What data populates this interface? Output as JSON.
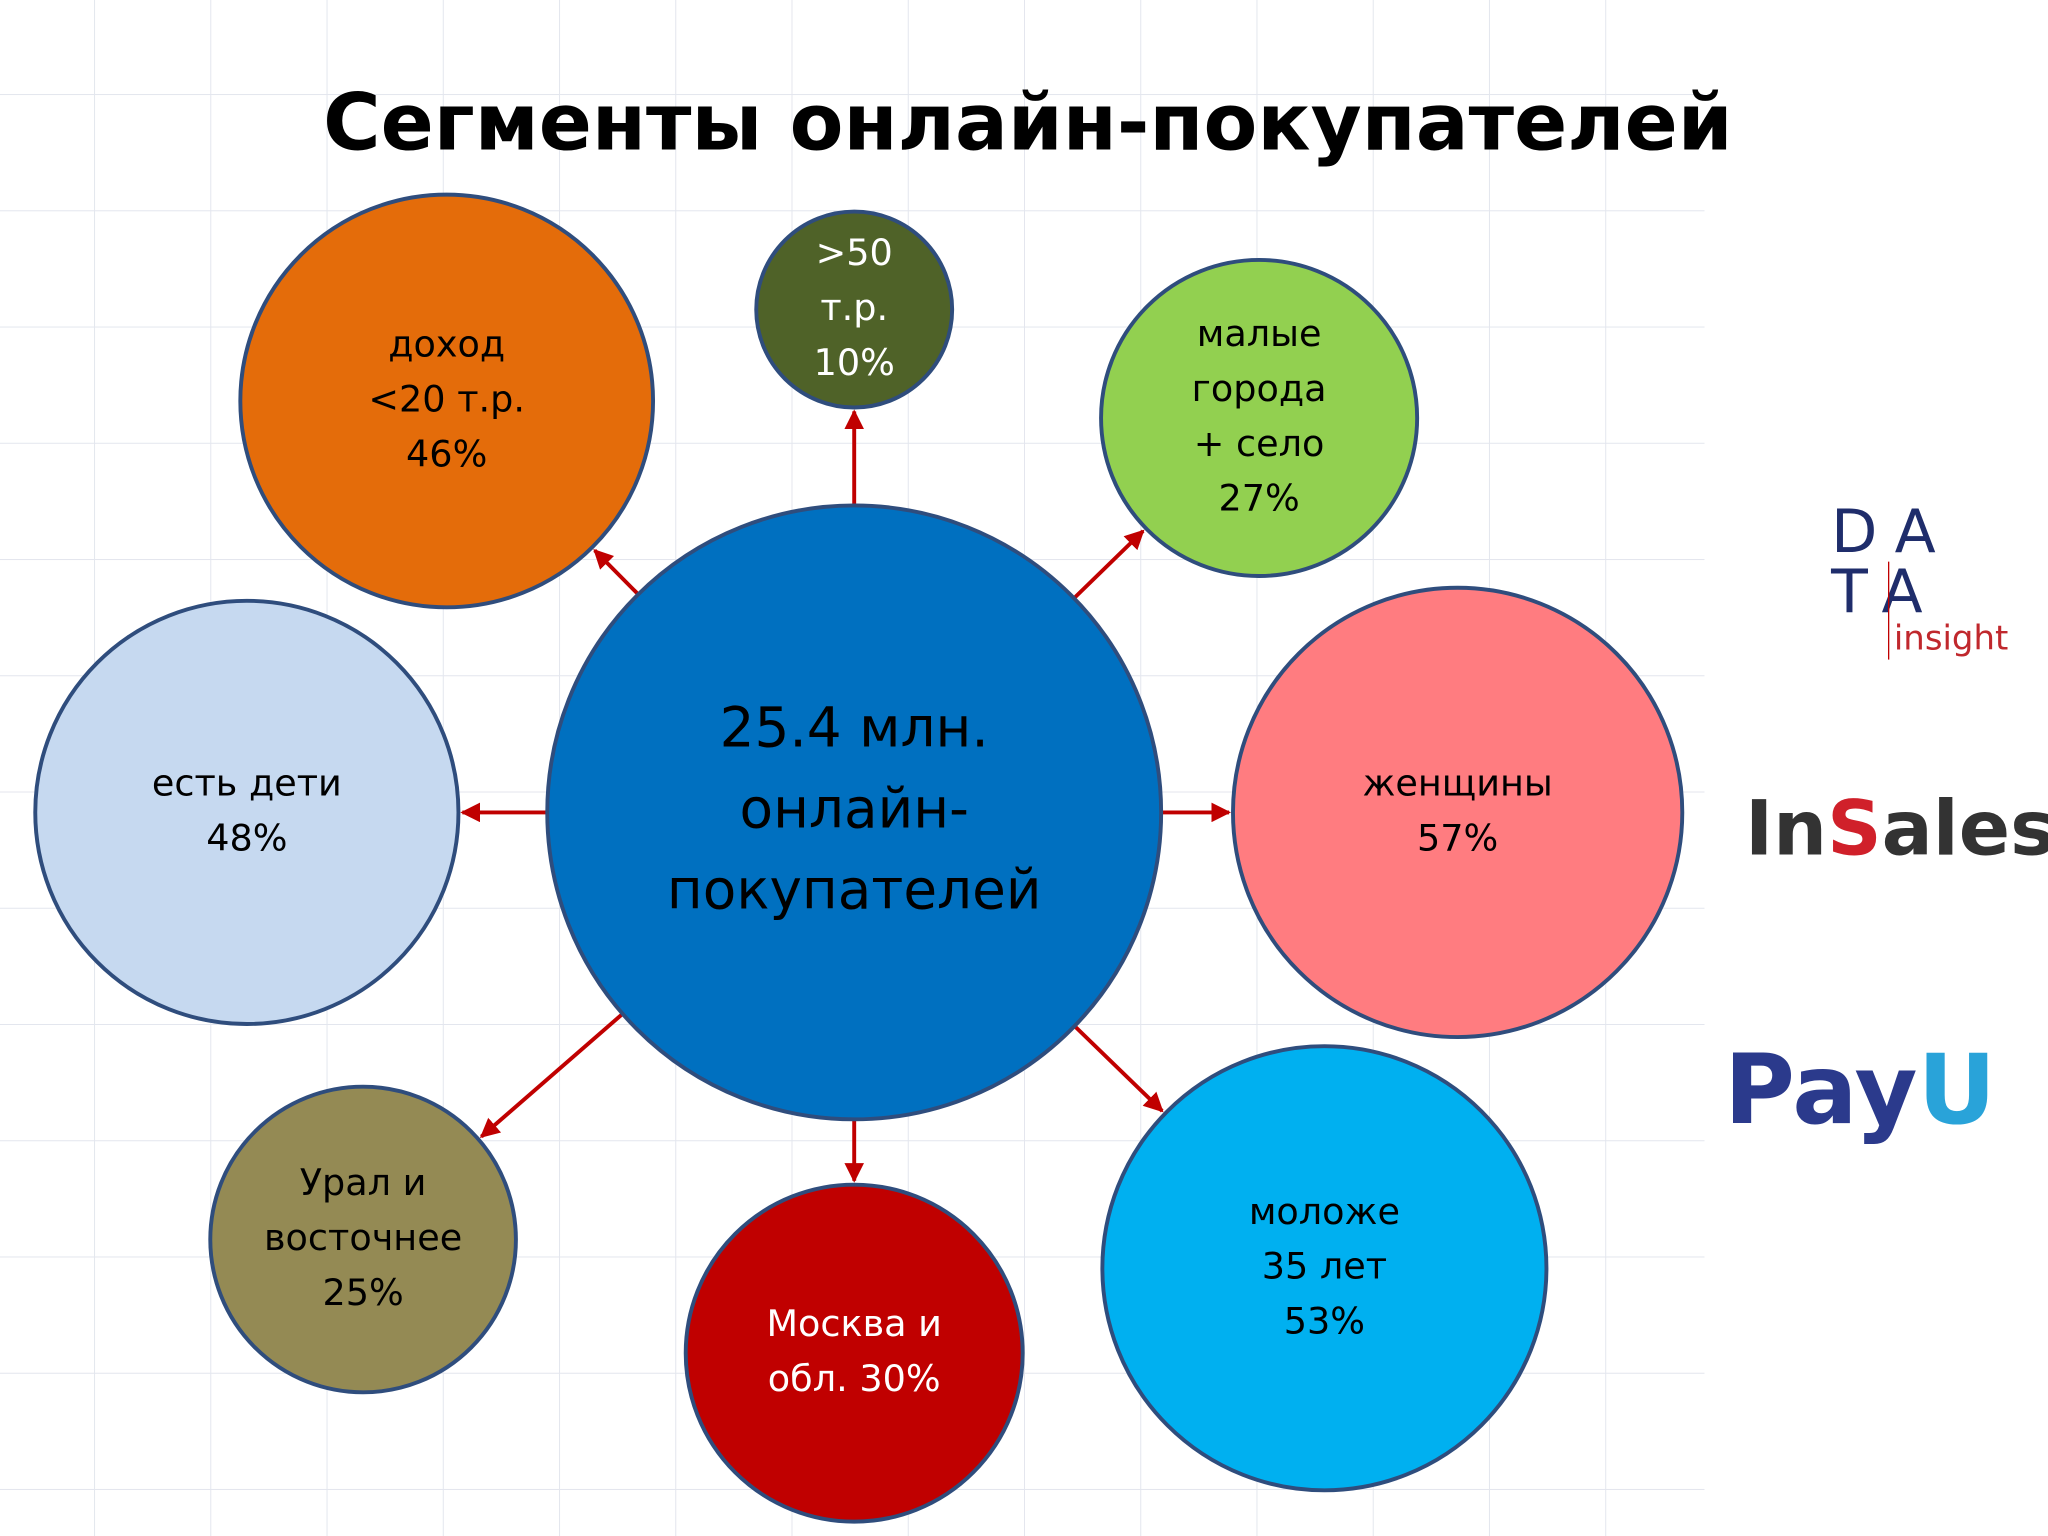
{
  "header": {
    "title": "Сегменты онлайн-покупателей"
  },
  "center": {
    "lines": [
      "25.4 млн.",
      "онлайн-",
      "покупателей"
    ]
  },
  "nodes": [
    {
      "lines": [
        "доход",
        "<20 т.р.",
        "46%"
      ]
    },
    {
      "lines": [
        ">50",
        "т.р.",
        "10%"
      ]
    },
    {
      "lines": [
        "малые",
        "города",
        "+ село",
        "27%"
      ]
    },
    {
      "lines": [
        "женщины",
        "57%"
      ]
    },
    {
      "lines": [
        "моложе",
        "35 лет",
        "53%"
      ]
    },
    {
      "lines": [
        "Москва и",
        "обл. 30%"
      ]
    },
    {
      "lines": [
        "Урал и",
        "восточнее",
        "25%"
      ]
    },
    {
      "lines": [
        "есть дети",
        "48%"
      ]
    }
  ],
  "logos": {
    "data_insight": [
      "DA",
      "TA",
      "insight"
    ],
    "insales": [
      "In",
      "S",
      "ales"
    ],
    "payu": [
      "Pay",
      "U"
    ]
  }
}
